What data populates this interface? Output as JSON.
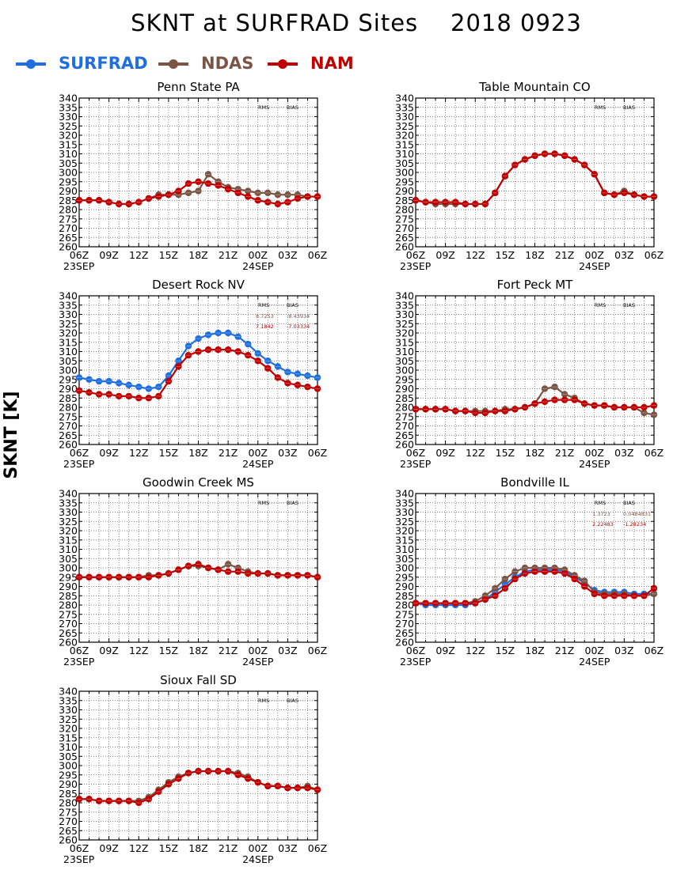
{
  "title": "SKNT at SURFRAD Sites    2018 0923",
  "ylabel": "SKNT [K]",
  "legend": [
    {
      "name": "SURFRAD",
      "color": "#1f6fe0"
    },
    {
      "name": "NDAS",
      "color": "#7a5545"
    },
    {
      "name": "NAM",
      "color": "#c00000"
    }
  ],
  "colors": {
    "SURFRAD": "#1f6fe0",
    "NDAS": "#7a5545",
    "NAM": "#c00000",
    "grid": "#555555"
  },
  "chart_data": [
    {
      "type": "line",
      "title": "Penn State PA",
      "x": [
        6,
        7,
        8,
        9,
        10,
        11,
        12,
        13,
        14,
        15,
        16,
        17,
        18,
        19,
        20,
        21,
        22,
        23,
        24,
        25,
        26,
        27,
        28,
        29,
        30
      ],
      "xlim": [
        6,
        30
      ],
      "ylim": [
        260,
        340
      ],
      "xticks": [
        "06Z",
        "09Z",
        "12Z",
        "15Z",
        "18Z",
        "21Z",
        "00Z",
        "03Z",
        "06Z"
      ],
      "xdates": [
        "23SEP",
        "24SEP"
      ],
      "yticks": [
        260,
        265,
        270,
        275,
        280,
        285,
        290,
        295,
        300,
        305,
        310,
        315,
        320,
        325,
        330,
        335,
        340
      ],
      "stats_header": [
        "RMS",
        "BIAS"
      ],
      "stats": [],
      "series": [
        {
          "name": "SURFRAD",
          "values": [
            null,
            null,
            null,
            null,
            null,
            null,
            null,
            null,
            null,
            null,
            null,
            null,
            null,
            null,
            null,
            null,
            null,
            null,
            null,
            null,
            null,
            null,
            null,
            null,
            null
          ]
        },
        {
          "name": "NDAS",
          "values": [
            285,
            285,
            285,
            284,
            283,
            283,
            284,
            286,
            288,
            288,
            288,
            289,
            290,
            299,
            295,
            292,
            291,
            290,
            289,
            289,
            288,
            288,
            288,
            287,
            287
          ]
        },
        {
          "name": "NAM",
          "values": [
            285,
            285,
            285,
            284,
            283,
            283,
            284,
            286,
            287,
            288,
            290,
            294,
            295,
            294,
            293,
            291,
            289,
            287,
            285,
            284,
            283,
            284,
            286,
            287,
            287
          ]
        }
      ]
    },
    {
      "type": "line",
      "title": "Table Mountain CO",
      "x": [
        6,
        7,
        8,
        9,
        10,
        11,
        12,
        13,
        14,
        15,
        16,
        17,
        18,
        19,
        20,
        21,
        22,
        23,
        24,
        25,
        26,
        27,
        28,
        29,
        30
      ],
      "xlim": [
        6,
        30
      ],
      "ylim": [
        260,
        340
      ],
      "xticks": [
        "06Z",
        "09Z",
        "12Z",
        "15Z",
        "18Z",
        "21Z",
        "00Z",
        "03Z",
        "06Z"
      ],
      "xdates": [
        "23SEP",
        "24SEP"
      ],
      "yticks": [
        260,
        265,
        270,
        275,
        280,
        285,
        290,
        295,
        300,
        305,
        310,
        315,
        320,
        325,
        330,
        335,
        340
      ],
      "stats_header": [
        "RMS",
        "BIAS"
      ],
      "stats": [],
      "series": [
        {
          "name": "SURFRAD",
          "values": [
            null,
            null,
            null,
            null,
            null,
            null,
            null,
            null,
            null,
            null,
            null,
            null,
            null,
            null,
            null,
            null,
            null,
            null,
            null,
            null,
            null,
            null,
            null,
            null,
            null
          ]
        },
        {
          "name": "NDAS",
          "values": [
            285,
            284,
            283,
            283,
            283,
            283,
            283,
            283,
            289,
            298,
            304,
            307,
            309,
            310,
            310,
            309,
            307,
            304,
            299,
            289,
            288,
            290,
            288,
            287,
            287
          ]
        },
        {
          "name": "NAM",
          "values": [
            285,
            284,
            284,
            284,
            284,
            283,
            283,
            283,
            289,
            298,
            304,
            307,
            309,
            310,
            310,
            309,
            307,
            304,
            299,
            289,
            288,
            289,
            288,
            287,
            287
          ]
        }
      ]
    },
    {
      "type": "line",
      "title": "Desert Rock NV",
      "x": [
        6,
        7,
        8,
        9,
        10,
        11,
        12,
        13,
        14,
        15,
        16,
        17,
        18,
        19,
        20,
        21,
        22,
        23,
        24,
        25,
        26,
        27,
        28,
        29,
        30
      ],
      "xlim": [
        6,
        30
      ],
      "ylim": [
        260,
        340
      ],
      "xticks": [
        "06Z",
        "09Z",
        "12Z",
        "15Z",
        "18Z",
        "21Z",
        "00Z",
        "03Z",
        "06Z"
      ],
      "xdates": [
        "23SEP",
        "24SEP"
      ],
      "yticks": [
        260,
        265,
        270,
        275,
        280,
        285,
        290,
        295,
        300,
        305,
        310,
        315,
        320,
        325,
        330,
        335,
        340
      ],
      "stats_header": [
        "RMS",
        "BIAS"
      ],
      "stats": [
        {
          "series": "NDAS",
          "rms": "8.7253",
          "bias": "-8.43934"
        },
        {
          "series": "NAM",
          "rms": "7.1842",
          "bias": "-7.03334"
        }
      ],
      "series": [
        {
          "name": "SURFRAD",
          "values": [
            296,
            295,
            294,
            294,
            293,
            292,
            291,
            290,
            291,
            297,
            305,
            313,
            317,
            319,
            320,
            320,
            318,
            314,
            309,
            305,
            302,
            299,
            298,
            297,
            296
          ]
        },
        {
          "name": "NDAS",
          "values": [
            null,
            null,
            null,
            null,
            null,
            null,
            null,
            null,
            null,
            null,
            null,
            null,
            null,
            null,
            null,
            null,
            null,
            null,
            null,
            null,
            null,
            null,
            null,
            null,
            null
          ]
        },
        {
          "name": "NAM",
          "values": [
            289,
            288,
            287,
            287,
            286,
            286,
            285,
            285,
            286,
            294,
            302,
            308,
            310,
            311,
            311,
            311,
            310,
            308,
            305,
            301,
            296,
            293,
            292,
            291,
            290
          ]
        }
      ]
    },
    {
      "type": "line",
      "title": "Fort Peck MT",
      "x": [
        6,
        7,
        8,
        9,
        10,
        11,
        12,
        13,
        14,
        15,
        16,
        17,
        18,
        19,
        20,
        21,
        22,
        23,
        24,
        25,
        26,
        27,
        28,
        29,
        30
      ],
      "xlim": [
        6,
        30
      ],
      "ylim": [
        260,
        340
      ],
      "xticks": [
        "06Z",
        "09Z",
        "12Z",
        "15Z",
        "18Z",
        "21Z",
        "00Z",
        "03Z",
        "06Z"
      ],
      "xdates": [
        "23SEP",
        "24SEP"
      ],
      "yticks": [
        260,
        265,
        270,
        275,
        280,
        285,
        290,
        295,
        300,
        305,
        310,
        315,
        320,
        325,
        330,
        335,
        340
      ],
      "stats_header": [
        "RMS",
        "BIAS"
      ],
      "stats": [],
      "series": [
        {
          "name": "SURFRAD",
          "values": [
            null,
            null,
            null,
            null,
            null,
            null,
            null,
            null,
            null,
            null,
            null,
            null,
            null,
            null,
            null,
            null,
            null,
            null,
            null,
            null,
            null,
            null,
            null,
            null,
            null
          ]
        },
        {
          "name": "NDAS",
          "values": [
            279,
            279,
            279,
            279,
            278,
            278,
            278,
            278,
            278,
            279,
            279,
            280,
            282,
            290,
            291,
            287,
            285,
            282,
            281,
            281,
            280,
            280,
            280,
            277,
            276
          ]
        },
        {
          "name": "NAM",
          "values": [
            279,
            279,
            279,
            279,
            278,
            278,
            277,
            277,
            278,
            278,
            279,
            280,
            282,
            283,
            284,
            284,
            284,
            282,
            281,
            281,
            280,
            280,
            280,
            280,
            281
          ]
        }
      ]
    },
    {
      "type": "line",
      "title": "Goodwin Creek MS",
      "x": [
        6,
        7,
        8,
        9,
        10,
        11,
        12,
        13,
        14,
        15,
        16,
        17,
        18,
        19,
        20,
        21,
        22,
        23,
        24,
        25,
        26,
        27,
        28,
        29,
        30
      ],
      "xlim": [
        6,
        30
      ],
      "ylim": [
        260,
        340
      ],
      "xticks": [
        "06Z",
        "09Z",
        "12Z",
        "15Z",
        "18Z",
        "21Z",
        "00Z",
        "03Z",
        "06Z"
      ],
      "xdates": [
        "23SEP",
        "24SEP"
      ],
      "yticks": [
        260,
        265,
        270,
        275,
        280,
        285,
        290,
        295,
        300,
        305,
        310,
        315,
        320,
        325,
        330,
        335,
        340
      ],
      "stats_header": [
        "RMS",
        "BIAS"
      ],
      "stats": [],
      "series": [
        {
          "name": "SURFRAD",
          "values": [
            null,
            null,
            null,
            null,
            null,
            null,
            null,
            null,
            null,
            null,
            null,
            null,
            null,
            null,
            null,
            null,
            null,
            null,
            null,
            null,
            null,
            null,
            null,
            null,
            null
          ]
        },
        {
          "name": "NDAS",
          "values": [
            295,
            295,
            295,
            295,
            295,
            295,
            295,
            296,
            296,
            297,
            299,
            301,
            301,
            300,
            299,
            302,
            300,
            298,
            297,
            297,
            296,
            296,
            296,
            296,
            295
          ]
        },
        {
          "name": "NAM",
          "values": [
            295,
            295,
            295,
            295,
            295,
            295,
            295,
            295,
            296,
            297,
            299,
            301,
            302,
            300,
            299,
            298,
            298,
            297,
            297,
            297,
            296,
            296,
            296,
            296,
            295
          ]
        }
      ]
    },
    {
      "type": "line",
      "title": "Bondville IL",
      "x": [
        6,
        7,
        8,
        9,
        10,
        11,
        12,
        13,
        14,
        15,
        16,
        17,
        18,
        19,
        20,
        21,
        22,
        23,
        24,
        25,
        26,
        27,
        28,
        29,
        30
      ],
      "xlim": [
        6,
        30
      ],
      "ylim": [
        260,
        340
      ],
      "xticks": [
        "06Z",
        "09Z",
        "12Z",
        "15Z",
        "18Z",
        "21Z",
        "00Z",
        "03Z",
        "06Z"
      ],
      "xdates": [
        "23SEP",
        "24SEP"
      ],
      "yticks": [
        260,
        265,
        270,
        275,
        280,
        285,
        290,
        295,
        300,
        305,
        310,
        315,
        320,
        325,
        330,
        335,
        340
      ],
      "stats_header": [
        "RMS",
        "BIAS"
      ],
      "stats": [
        {
          "series": "NDAS",
          "rms": "1.3723",
          "bias": "0.0484831"
        },
        {
          "series": "NAM",
          "rms": "2.22483",
          "bias": "-1.28234"
        }
      ],
      "series": [
        {
          "name": "SURFRAD",
          "values": [
            281,
            280,
            280,
            280,
            280,
            280,
            281,
            283,
            287,
            291,
            295,
            298,
            299,
            299,
            299,
            298,
            295,
            292,
            288,
            287,
            287,
            287,
            286,
            286,
            286
          ]
        },
        {
          "name": "NDAS",
          "values": [
            281,
            281,
            281,
            281,
            281,
            281,
            282,
            285,
            289,
            294,
            298,
            300,
            300,
            300,
            300,
            299,
            296,
            293,
            287,
            286,
            286,
            286,
            285,
            285,
            286
          ]
        },
        {
          "name": "NAM",
          "values": [
            281,
            281,
            281,
            281,
            281,
            281,
            281,
            283,
            285,
            289,
            294,
            297,
            298,
            298,
            298,
            297,
            294,
            290,
            286,
            285,
            285,
            285,
            285,
            285,
            289
          ]
        }
      ]
    },
    {
      "type": "line",
      "title": "Sioux Fall SD",
      "x": [
        6,
        7,
        8,
        9,
        10,
        11,
        12,
        13,
        14,
        15,
        16,
        17,
        18,
        19,
        20,
        21,
        22,
        23,
        24,
        25,
        26,
        27,
        28,
        29,
        30
      ],
      "xlim": [
        6,
        30
      ],
      "ylim": [
        260,
        340
      ],
      "xticks": [
        "06Z",
        "09Z",
        "12Z",
        "15Z",
        "18Z",
        "21Z",
        "00Z",
        "03Z",
        "06Z"
      ],
      "xdates": [
        "23SEP",
        "24SEP"
      ],
      "yticks": [
        260,
        265,
        270,
        275,
        280,
        285,
        290,
        295,
        300,
        305,
        310,
        315,
        320,
        325,
        330,
        335,
        340
      ],
      "stats_header": [
        "RMS",
        "BIAS"
      ],
      "stats": [],
      "series": [
        {
          "name": "SURFRAD",
          "values": [
            null,
            null,
            null,
            null,
            null,
            null,
            null,
            null,
            null,
            null,
            null,
            null,
            null,
            null,
            null,
            null,
            null,
            null,
            null,
            null,
            null,
            null,
            null,
            null,
            null
          ]
        },
        {
          "name": "NDAS",
          "values": [
            282,
            282,
            281,
            281,
            281,
            281,
            281,
            283,
            287,
            291,
            294,
            296,
            297,
            297,
            297,
            297,
            296,
            294,
            291,
            289,
            289,
            288,
            288,
            289,
            287
          ]
        },
        {
          "name": "NAM",
          "values": [
            282,
            282,
            281,
            281,
            281,
            281,
            280,
            282,
            286,
            290,
            293,
            296,
            297,
            297,
            297,
            297,
            295,
            293,
            291,
            289,
            289,
            288,
            288,
            288,
            287
          ]
        }
      ]
    }
  ]
}
